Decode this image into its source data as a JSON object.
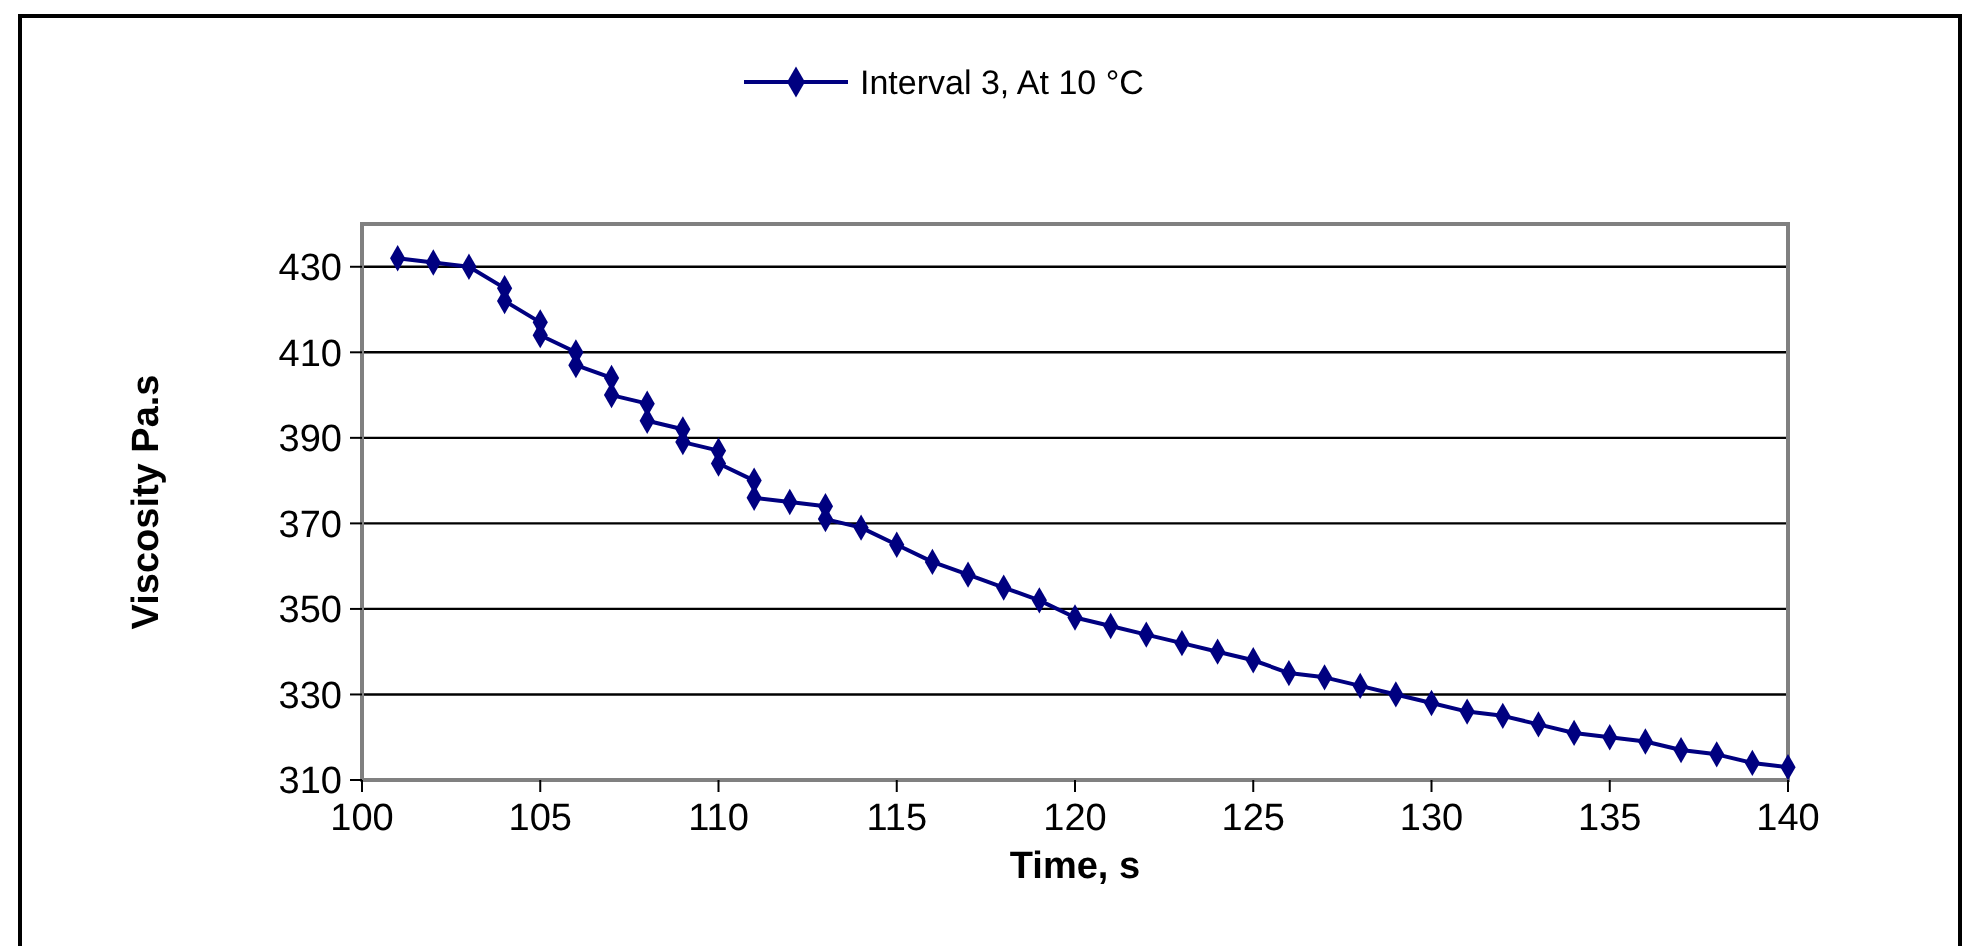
{
  "chart_data": {
    "type": "line",
    "xlabel": "Time, s",
    "ylabel": "Viscosity Pa.s",
    "x": [
      101,
      102,
      103,
      104,
      104,
      105,
      105,
      106,
      106,
      107,
      107,
      108,
      108,
      109,
      109,
      110,
      110,
      111,
      111,
      112,
      113,
      113,
      114,
      115,
      116,
      117,
      118,
      119,
      120,
      121,
      122,
      123,
      124,
      125,
      126,
      127,
      128,
      129,
      130,
      131,
      132,
      133,
      134,
      135,
      136,
      137,
      138,
      139,
      140
    ],
    "series": [
      {
        "name": "Interval 3, At 10 °C",
        "color": "#000080",
        "values": [
          432,
          431,
          430,
          425,
          422,
          417,
          414,
          410,
          407,
          404,
          400,
          398,
          394,
          392,
          389,
          387,
          384,
          380,
          376,
          375,
          374,
          371,
          369,
          365,
          361,
          358,
          355,
          352,
          348,
          346,
          344,
          342,
          340,
          338,
          335,
          334,
          332,
          330,
          328,
          326,
          325,
          323,
          321,
          320,
          319,
          317,
          316,
          314,
          313
        ]
      }
    ],
    "xlim": [
      100,
      140
    ],
    "xticks": [
      100,
      105,
      110,
      115,
      120,
      125,
      130,
      135,
      140
    ],
    "ylim": [
      310,
      440
    ],
    "yticks": [
      310,
      330,
      350,
      370,
      390,
      410,
      430
    ],
    "grid": "y",
    "legend": "top",
    "marker": "diamond",
    "line_style": "solid"
  }
}
